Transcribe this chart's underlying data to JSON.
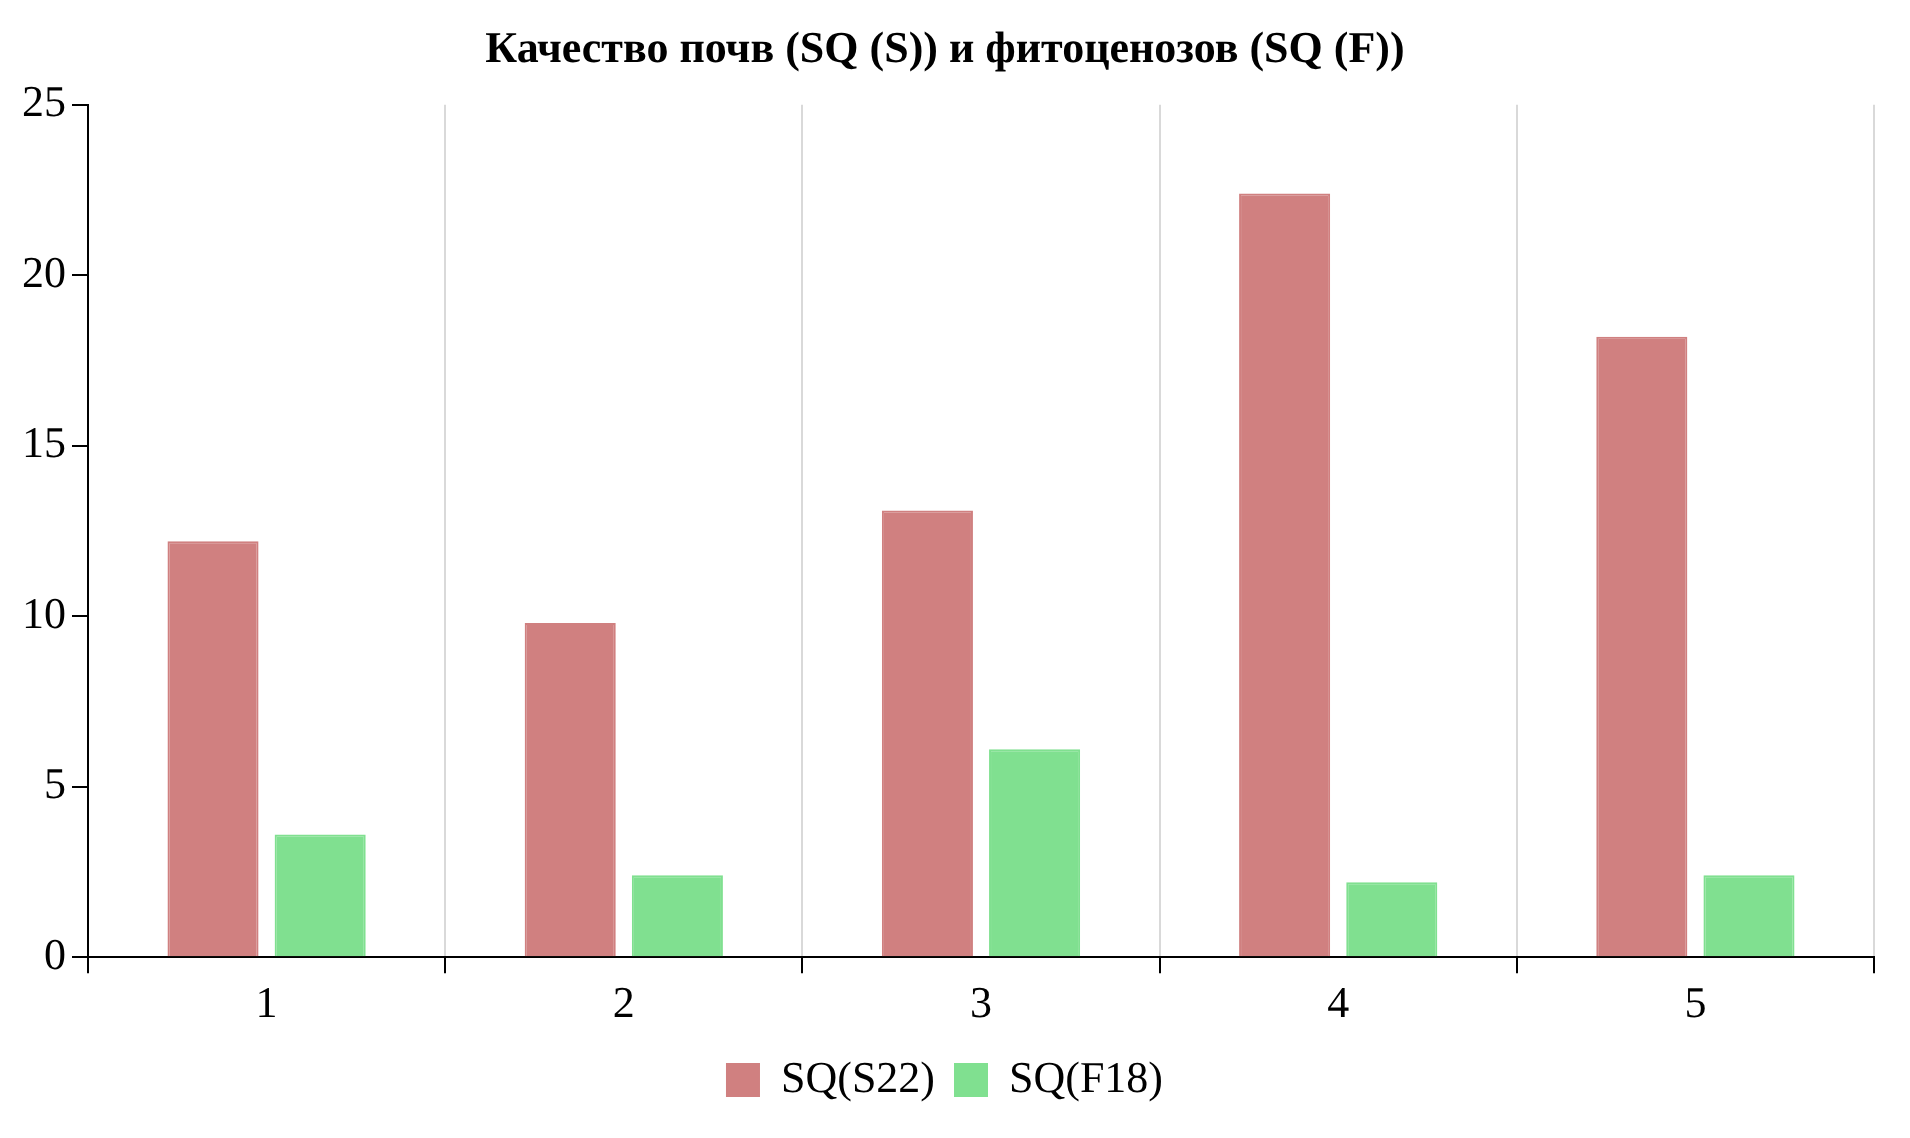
{
  "chart_data": {
    "type": "bar",
    "title": "Качество почв (SQ (S)) и фитоценозов (SQ (F))",
    "categories": [
      "1",
      "2",
      "3",
      "4",
      "5"
    ],
    "series": [
      {
        "name": "SQ(S22)",
        "color": "#d08080",
        "values": [
          12.2,
          9.8,
          13.1,
          22.4,
          18.2
        ]
      },
      {
        "name": "SQ(F18)",
        "color": "#80e090",
        "values": [
          3.6,
          2.4,
          6.1,
          2.2,
          2.4
        ]
      }
    ],
    "ylim": [
      0,
      25
    ],
    "yticks": [
      0,
      5,
      10,
      15,
      20,
      25
    ],
    "grid": "x",
    "legend": "bottom"
  }
}
